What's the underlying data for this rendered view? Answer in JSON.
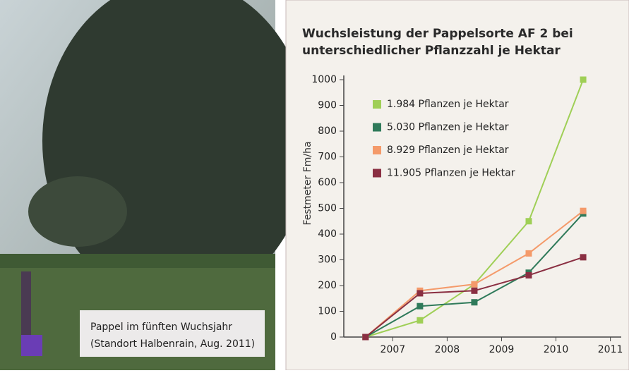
{
  "photo": {
    "caption": [
      "Pappel im fünften Wuchsjahr",
      "(Standort Halbenrain, Aug. 2011)"
    ]
  },
  "chart_data": {
    "type": "line",
    "title": [
      "Wuchsleistung der Pappelsorte AF 2 bei",
      "unterschiedlicher Pflanzzahl je Hektar"
    ],
    "y_label": "Festmeter Fm/ha",
    "x": [
      2006.5,
      2007.5,
      2008.5,
      2009.5,
      2010.5
    ],
    "series": [
      {
        "name": "1.984 Pflanzen je Hektar",
        "color": "#9fcf56",
        "values": [
          0,
          65,
          205,
          450,
          1000
        ]
      },
      {
        "name": "5.030 Pflanzen je Hektar",
        "color": "#2f7a5a",
        "values": [
          0,
          120,
          135,
          250,
          480
        ]
      },
      {
        "name": "8.929 Pflanzen je Hektar",
        "color": "#f49a6a",
        "values": [
          0,
          180,
          205,
          325,
          490
        ]
      },
      {
        "name": "11.905 Pflanzen je Hektar",
        "color": "#8a2f42",
        "values": [
          0,
          170,
          180,
          240,
          310
        ]
      }
    ],
    "xlim": [
      2006.1,
      2011.2
    ],
    "xticks": [
      2007,
      2008,
      2009,
      2010,
      2011
    ],
    "ylim": [
      0,
      1000
    ],
    "yticks": [
      0,
      100,
      200,
      300,
      400,
      500,
      600,
      700,
      800,
      900,
      1000
    ],
    "legend": "upper-left"
  }
}
